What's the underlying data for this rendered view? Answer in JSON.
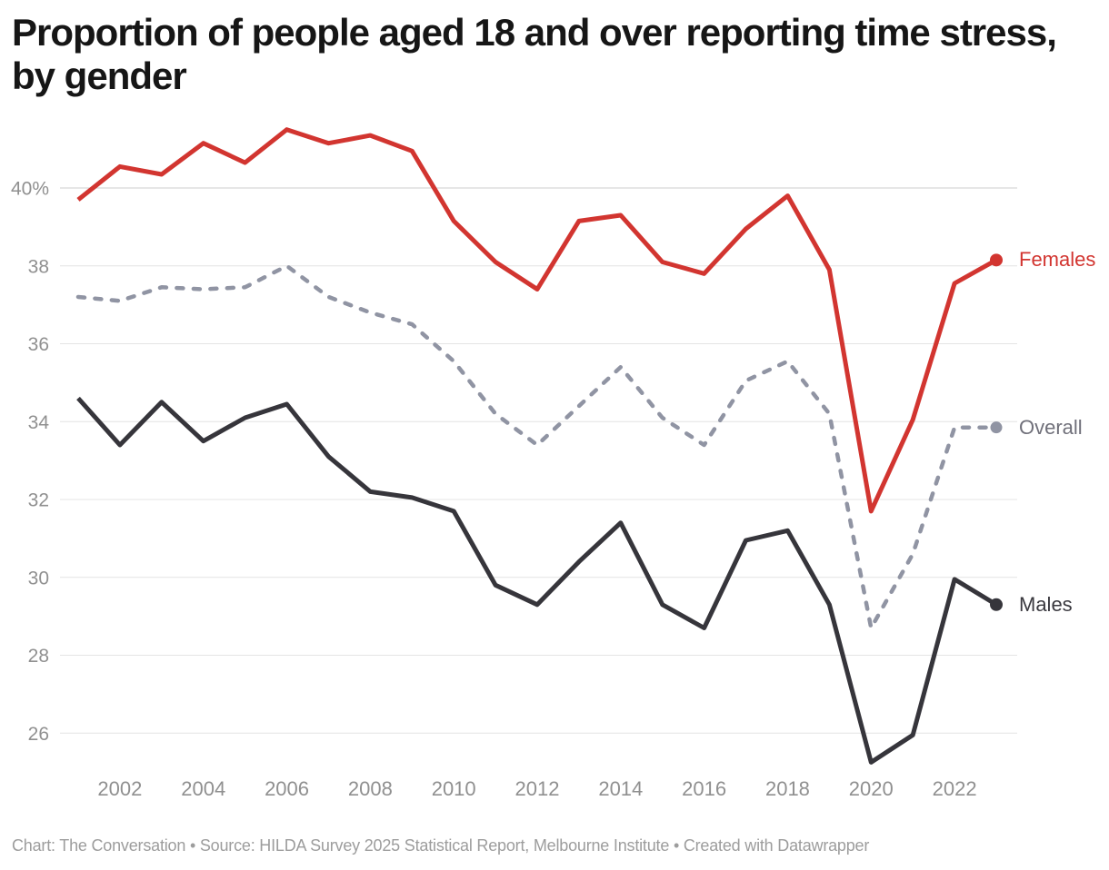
{
  "header": {
    "title_line1": "Proportion of people aged 18 and over reporting time stress,",
    "title_line2": "by gender"
  },
  "footer": {
    "credit": "Chart: The Conversation • Source: HILDA Survey 2025 Statistical Report, Melbourne Institute • Created with Datawrapper"
  },
  "colors": {
    "females_line": "#d23530",
    "overall_line": "#9094a3",
    "overall_text": "#70707a",
    "males_line": "#36353b",
    "males_text": "#3a393f",
    "grid": "#e4e4e4",
    "grid_top": "#cccccc",
    "axis_text": "#909090",
    "title_text": "#161616",
    "footer_text": "#9d9d9d"
  },
  "chart_data": {
    "type": "line",
    "title": "Proportion of people aged 18 and over reporting time stress, by gender",
    "xlabel": "",
    "ylabel": "",
    "grid": true,
    "legend_position": "right-of-line-ends",
    "x": [
      2001,
      2002,
      2003,
      2004,
      2005,
      2006,
      2007,
      2008,
      2009,
      2010,
      2011,
      2012,
      2013,
      2014,
      2015,
      2016,
      2017,
      2018,
      2019,
      2020,
      2021,
      2022,
      2023
    ],
    "x_tick_labels": [
      "2002",
      "2004",
      "2006",
      "2008",
      "2010",
      "2012",
      "2014",
      "2016",
      "2018",
      "2020",
      "2022"
    ],
    "y_ticks": [
      {
        "value": 40,
        "label": "40%"
      },
      {
        "value": 38,
        "label": "38"
      },
      {
        "value": 36,
        "label": "36"
      },
      {
        "value": 34,
        "label": "34"
      },
      {
        "value": 32,
        "label": "32"
      },
      {
        "value": 30,
        "label": "30"
      },
      {
        "value": 28,
        "label": "28"
      },
      {
        "value": 26,
        "label": "26"
      }
    ],
    "ylim": [
      25.0,
      41.7
    ],
    "series": [
      {
        "name": "Females",
        "style": "solid",
        "values": [
          39.7,
          40.55,
          40.35,
          41.15,
          40.65,
          41.5,
          41.15,
          41.35,
          40.95,
          39.15,
          38.1,
          37.4,
          39.15,
          39.3,
          38.1,
          37.8,
          38.95,
          39.8,
          37.9,
          31.7,
          34.05,
          37.55,
          38.15
        ]
      },
      {
        "name": "Overall",
        "style": "dashed",
        "values": [
          37.2,
          37.1,
          37.45,
          37.4,
          37.45,
          38.0,
          37.2,
          36.8,
          36.5,
          35.55,
          34.2,
          33.4,
          34.4,
          35.4,
          34.1,
          33.4,
          35.05,
          35.55,
          34.2,
          28.7,
          30.6,
          33.85,
          33.85
        ]
      },
      {
        "name": "Males",
        "style": "solid",
        "values": [
          34.6,
          33.4,
          34.5,
          33.5,
          34.1,
          34.45,
          33.1,
          32.2,
          32.05,
          31.7,
          29.8,
          29.3,
          30.4,
          31.4,
          29.3,
          28.7,
          30.95,
          31.2,
          29.3,
          25.25,
          25.95,
          29.95,
          29.3
        ]
      }
    ]
  }
}
